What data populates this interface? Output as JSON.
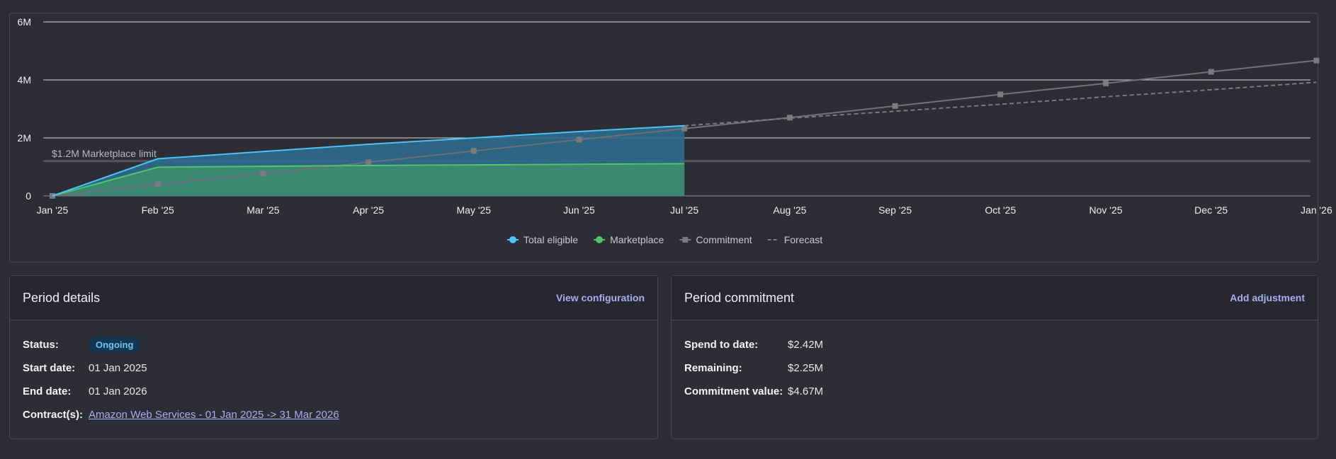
{
  "chart_data": {
    "type": "area",
    "y_ticks": [
      {
        "value": 0,
        "label": "0"
      },
      {
        "value": 2000000,
        "label": "2M"
      },
      {
        "value": 4000000,
        "label": "4M"
      },
      {
        "value": 6000000,
        "label": "6M"
      }
    ],
    "ylim": [
      0,
      6000000
    ],
    "x_labels": [
      "Jan '25",
      "Feb '25",
      "Mar '25",
      "Apr '25",
      "May '25",
      "Jun '25",
      "Jul '25",
      "Aug '25",
      "Sep '25",
      "Oct '25",
      "Nov '25",
      "Dec '25",
      "Jan '26"
    ],
    "grid": true,
    "legend_position": "bottom-center",
    "annotation": {
      "label": "$1.2M Marketplace limit",
      "value": 1200000
    },
    "series": [
      {
        "name": "Total eligible",
        "color": "#4cc3f5",
        "style": "area",
        "values": [
          0,
          1280000,
          1530000,
          1780000,
          2000000,
          2220000,
          2420000
        ]
      },
      {
        "name": "Marketplace",
        "color": "#4fc46a",
        "style": "area",
        "values": [
          0,
          990000,
          1020000,
          1050000,
          1070000,
          1090000,
          1110000
        ]
      },
      {
        "name": "Commitment",
        "color": "#6c6c72",
        "style": "line-square",
        "values": [
          0,
          400000,
          770000,
          1160000,
          1550000,
          1940000,
          2320000,
          2700000,
          3100000,
          3500000,
          3880000,
          4280000,
          4670000
        ]
      },
      {
        "name": "Forecast",
        "color": "#6c6c72",
        "style": "dashed",
        "start_index": 6,
        "values": [
          2420000,
          2680000,
          2920000,
          3160000,
          3420000,
          3660000,
          3920000
        ]
      }
    ]
  },
  "period_details": {
    "title": "Period details",
    "action": "View configuration",
    "status_label": "Status:",
    "status_value": "Ongoing",
    "start_label": "Start date:",
    "start_value": "01 Jan 2025",
    "end_label": "End date:",
    "end_value": "01 Jan 2026",
    "contracts_label": "Contract(s):",
    "contracts_value": "Amazon Web Services - 01 Jan 2025 -> 31 Mar 2026"
  },
  "period_commitment": {
    "title": "Period commitment",
    "action": "Add adjustment",
    "spend_label": "Spend to date:",
    "spend_value": "$2.42M",
    "remaining_label": "Remaining:",
    "remaining_value": "$2.25M",
    "commitment_label": "Commitment value:",
    "commitment_value": "$4.67M"
  }
}
